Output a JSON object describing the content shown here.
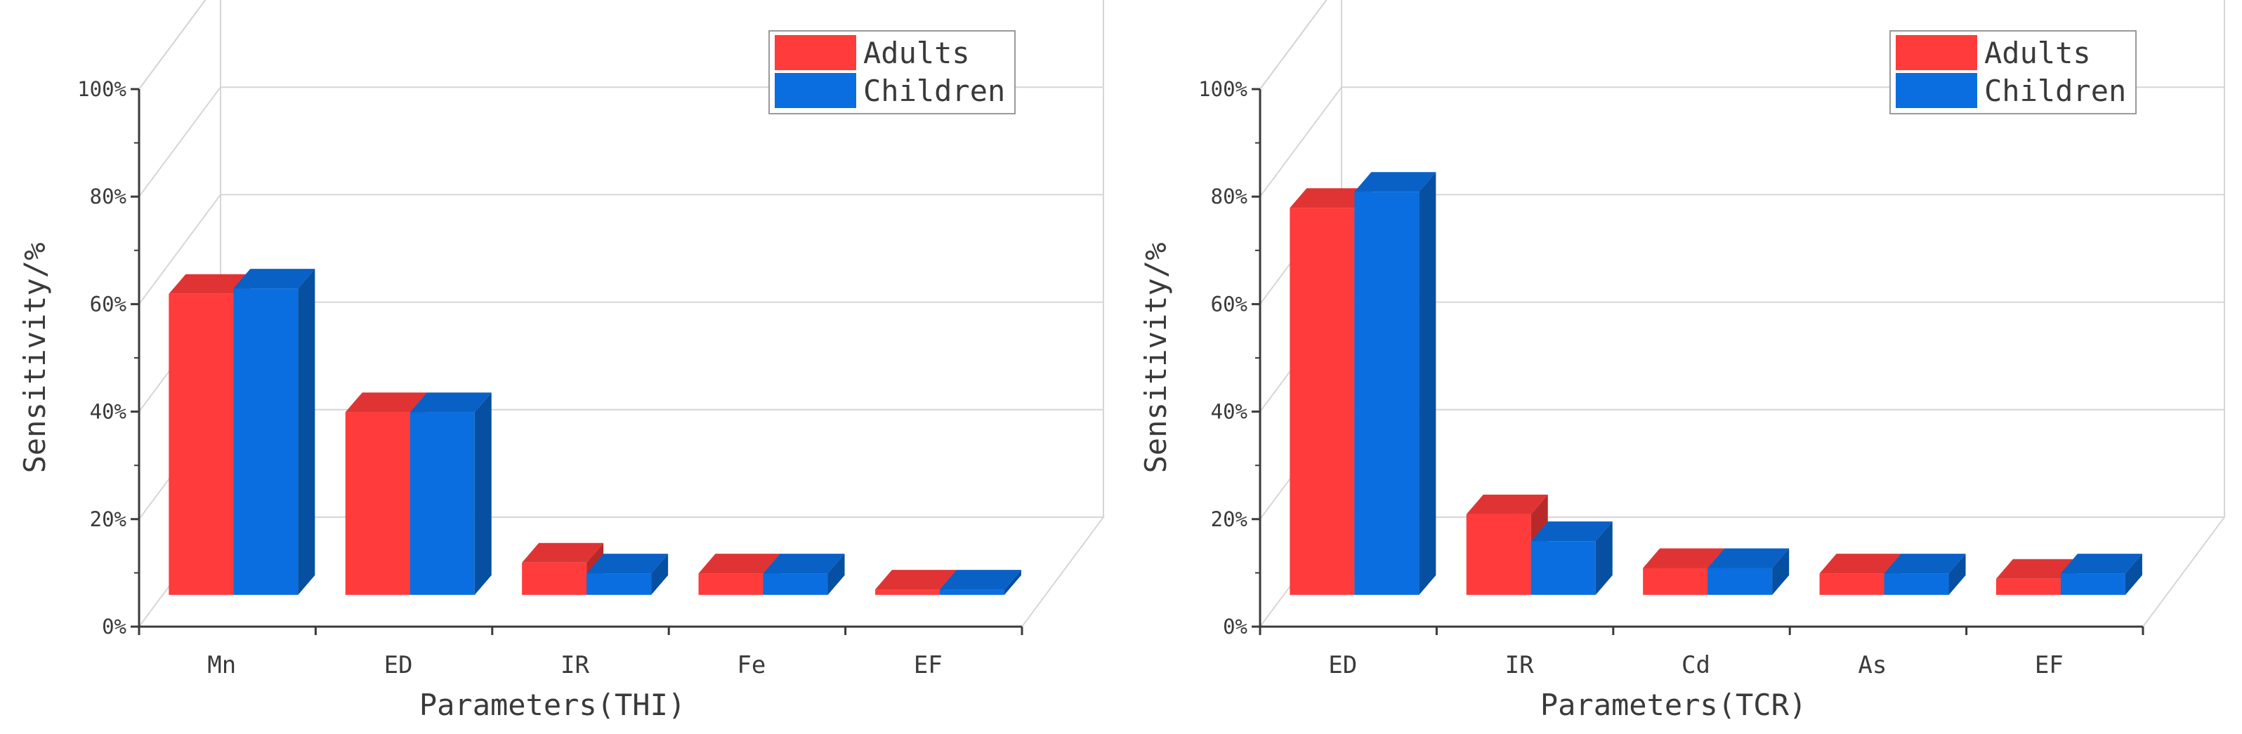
{
  "colors": {
    "adults": "#ff3b3b",
    "children": "#0a6ee0"
  },
  "chart_data": [
    {
      "type": "bar",
      "style": "3d-clustered",
      "title": "",
      "xlabel": "Parameters(THI)",
      "ylabel": "Sensitivity/%",
      "ylim": [
        0,
        100
      ],
      "yticks": [
        "0%",
        "20%",
        "40%",
        "60%",
        "80%",
        "100%"
      ],
      "categories": [
        "Mn",
        "ED",
        "IR",
        "Fe",
        "EF"
      ],
      "legend": {
        "position": "top-right",
        "entries": [
          "Adults",
          "Children"
        ]
      },
      "series": [
        {
          "name": "Adults",
          "values": [
            56,
            34,
            6,
            4,
            1
          ]
        },
        {
          "name": "Children",
          "values": [
            57,
            34,
            4,
            4,
            1
          ]
        }
      ]
    },
    {
      "type": "bar",
      "style": "3d-clustered",
      "title": "",
      "xlabel": "Parameters(TCR)",
      "ylabel": "Sensitivity/%",
      "ylim": [
        0,
        100
      ],
      "yticks": [
        "0%",
        "20%",
        "40%",
        "60%",
        "80%",
        "100%"
      ],
      "categories": [
        "ED",
        "IR",
        "Cd",
        "As",
        "EF"
      ],
      "legend": {
        "position": "top-right",
        "entries": [
          "Adults",
          "Children"
        ]
      },
      "series": [
        {
          "name": "Adults",
          "values": [
            72,
            15,
            5,
            4,
            3
          ]
        },
        {
          "name": "Children",
          "values": [
            75,
            10,
            5,
            4,
            4
          ]
        }
      ]
    }
  ]
}
